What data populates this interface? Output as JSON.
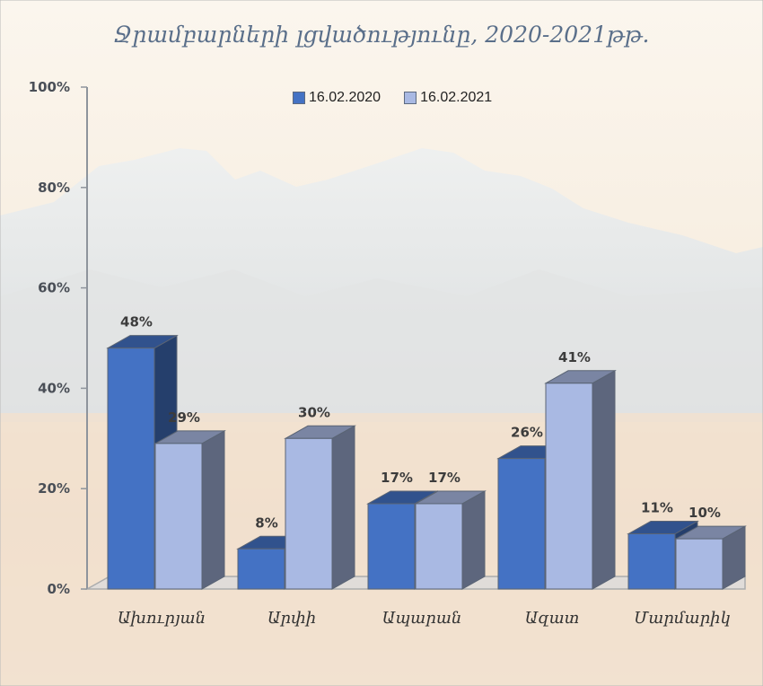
{
  "chart_data": {
    "type": "bar",
    "title": "Ջրամբարների լցվածությունը,  2020-2021թթ.",
    "categories": [
      "Ախուրյան",
      "Արփի",
      "Ապարան",
      "Ազատ",
      "Մարմարիկ"
    ],
    "series": [
      {
        "name": "16.02.2020",
        "values": [
          48,
          8,
          17,
          26,
          11
        ],
        "labels": [
          "48%",
          "8%",
          "17%",
          "26%",
          "11%"
        ],
        "color": "#4472c4"
      },
      {
        "name": "16.02.2021",
        "values": [
          29,
          30,
          17,
          41,
          10
        ],
        "labels": [
          "29%",
          "30%",
          "17%",
          "41%",
          "10%"
        ],
        "color": "#a9b9e3"
      }
    ],
    "y_ticks": [
      "0%",
      "20%",
      "40%",
      "60%",
      "80%",
      "100%"
    ],
    "ylim": [
      0,
      100
    ],
    "legend_position": "top",
    "grid": false,
    "style": "3d-column"
  }
}
